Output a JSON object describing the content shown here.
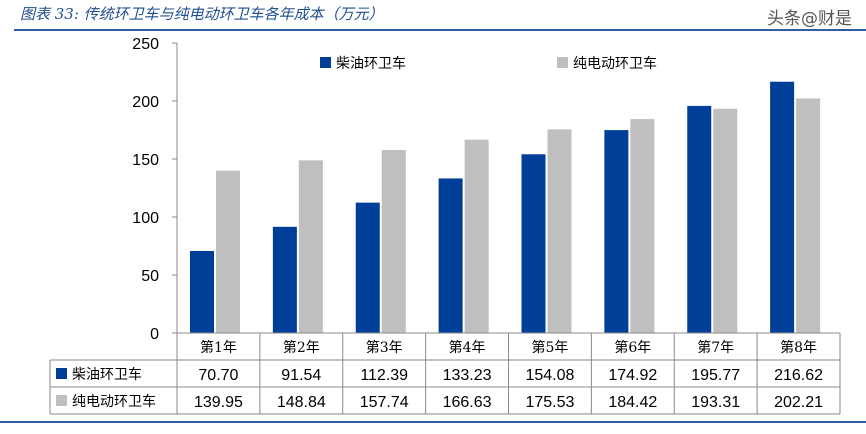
{
  "title": "图表 33: 传统环卫车与纯电动环卫车各年成本（万元）",
  "watermark": "头条@财是",
  "chart_data": {
    "type": "bar",
    "title": "图表 33: 传统环卫车与纯电动环卫车各年成本（万元）",
    "categories": [
      "第1年",
      "第2年",
      "第3年",
      "第4年",
      "第5年",
      "第6年",
      "第7年",
      "第8年"
    ],
    "ylim": [
      0,
      250
    ],
    "yticks": [
      0,
      50,
      100,
      150,
      200,
      250
    ],
    "grid": false,
    "legend": "top",
    "series": [
      {
        "name": "柴油环卫车",
        "color": "#003f98",
        "values": [
          70.7,
          91.54,
          112.39,
          133.23,
          154.08,
          174.92,
          195.77,
          216.62
        ],
        "labels": [
          "70.70",
          "91.54",
          "112.39",
          "133.23",
          "154.08",
          "174.92",
          "195.77",
          "216.62"
        ]
      },
      {
        "name": "纯电动环卫车",
        "color": "#bfbfbf",
        "values": [
          139.95,
          148.84,
          157.74,
          166.63,
          175.53,
          184.42,
          193.31,
          202.21
        ],
        "labels": [
          "139.95",
          "148.84",
          "157.74",
          "166.63",
          "175.53",
          "184.42",
          "193.31",
          "202.21"
        ]
      }
    ]
  }
}
